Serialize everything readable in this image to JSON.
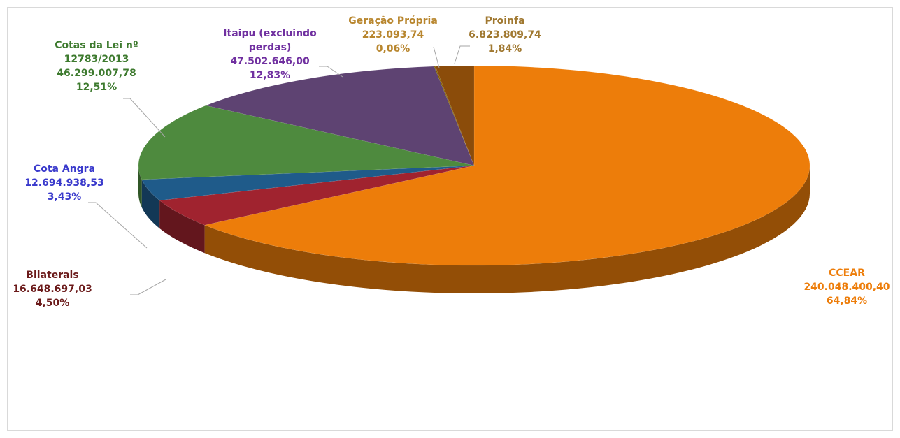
{
  "chart_data": {
    "type": "pie",
    "categories": [
      "CCEAR",
      "Bilaterais",
      "Cota Angra",
      "Cotas da Lei nº 12783/2013",
      "Itaipu (excluindo perdas)",
      "Geração Própria",
      "Proinfa"
    ],
    "values": [
      240048400.4,
      16648697.03,
      12694938.53,
      46299007.78,
      47502646.0,
      223093.74,
      6823809.74
    ],
    "value_labels": [
      "240.048.400,40",
      "16.648.697,03",
      "12.694.938,53",
      "46.299.007,78",
      "47.502.646,00",
      "223.093,74",
      "6.823.809,74"
    ],
    "percentages": [
      64.84,
      4.5,
      3.43,
      12.51,
      12.83,
      0.06,
      1.84
    ],
    "percentage_labels": [
      "64,84%",
      "4,50%",
      "3,43%",
      "12,51%",
      "12,83%",
      "0,06%",
      "1,84%"
    ],
    "colors": [
      "#ED7D0A",
      "#A0232F",
      "#1F5B8A",
      "#4E8A3E",
      "#5E4372",
      "#7F6000",
      "#8B4C0A"
    ],
    "label_colors": [
      "#ED7D0A",
      "#6B1A1A",
      "#3A3ACC",
      "#3D7A2E",
      "#7030A0",
      "#B8862E",
      "#A07830"
    ]
  }
}
